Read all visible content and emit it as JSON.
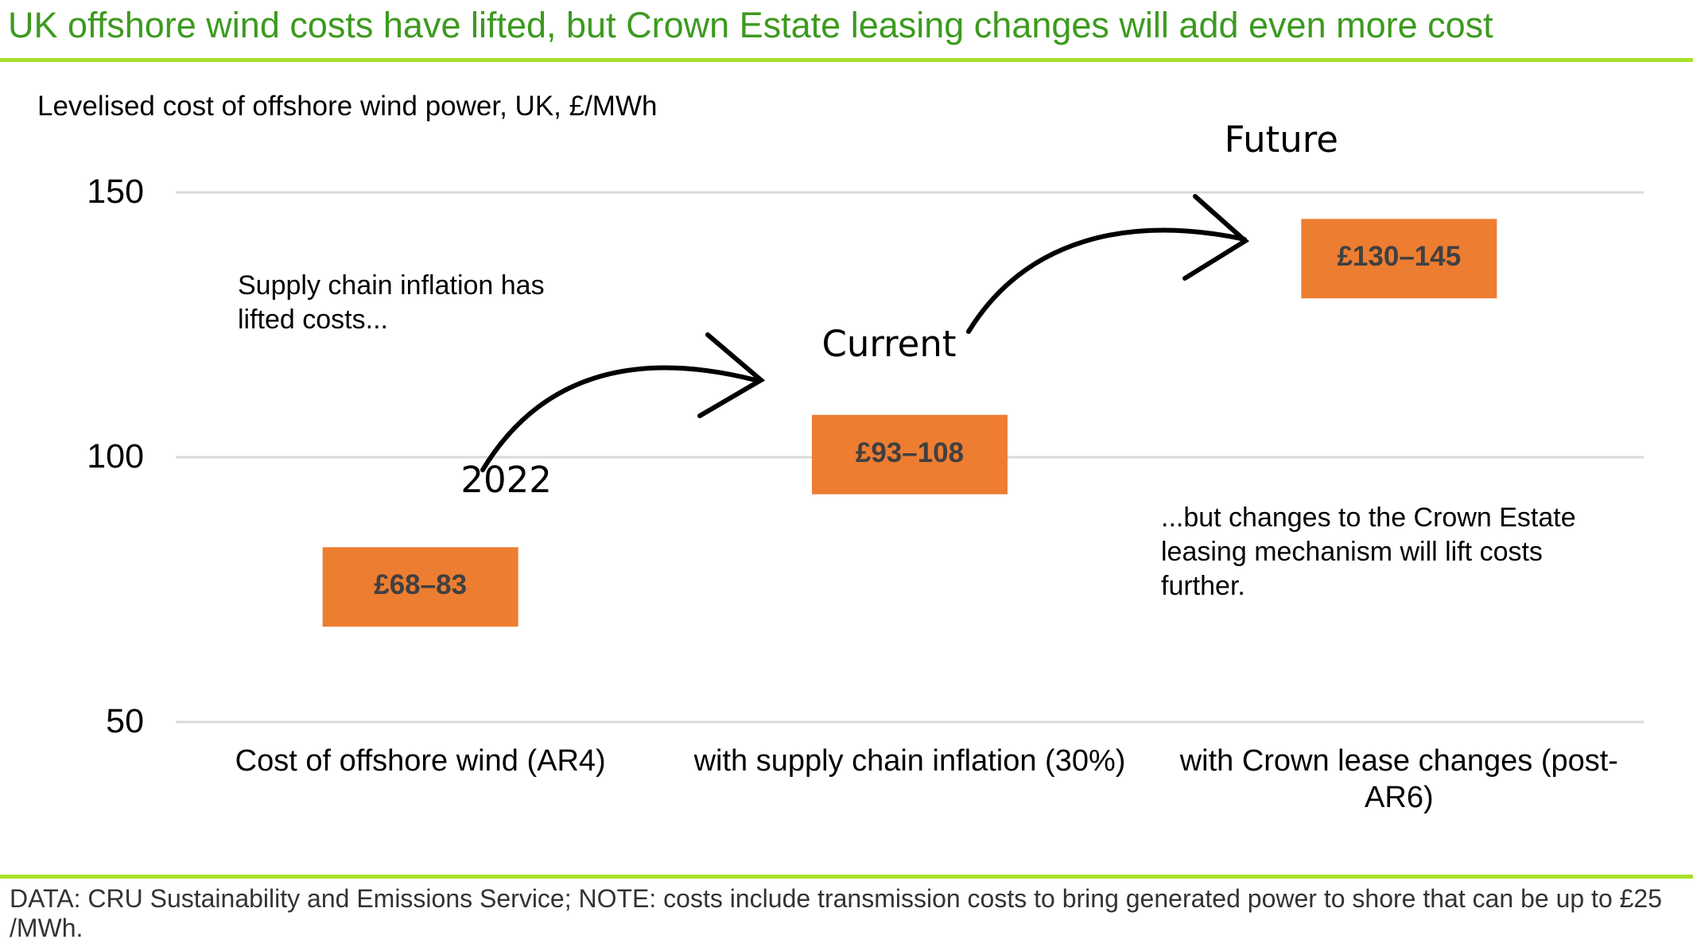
{
  "chart_data": {
    "type": "floating_bar",
    "title": "UK offshore wind costs have lifted, but Crown Estate leasing changes will add even more cost",
    "subtitle": "Levelised cost of offshore wind power, UK, £/MWh",
    "categories": [
      "Cost of offshore wind (AR4)",
      "with supply chain inflation (30%)",
      "with Crown lease changes (post-AR6)"
    ],
    "low": [
      68,
      93,
      130
    ],
    "high": [
      83,
      108,
      145
    ],
    "value_labels": [
      "£68–83",
      "£93–108",
      "£130–145"
    ],
    "bar_labels": [
      "2022",
      "Current",
      "Future"
    ],
    "color": "#ed7d31",
    "ylim": [
      50,
      150
    ],
    "yticks": [
      50,
      100,
      150
    ],
    "grid": true,
    "annotations": [
      {
        "lines": [
          "Supply chain inflation has",
          "lifted costs..."
        ]
      },
      {
        "lines": [
          "...but changes to the Crown Estate",
          "leasing mechanism will lift costs",
          "further."
        ]
      }
    ],
    "footer": "DATA: CRU Sustainability and Emissions Service; NOTE: costs include transmission costs to bring generated power to shore that can be up to £25 /MWh."
  }
}
